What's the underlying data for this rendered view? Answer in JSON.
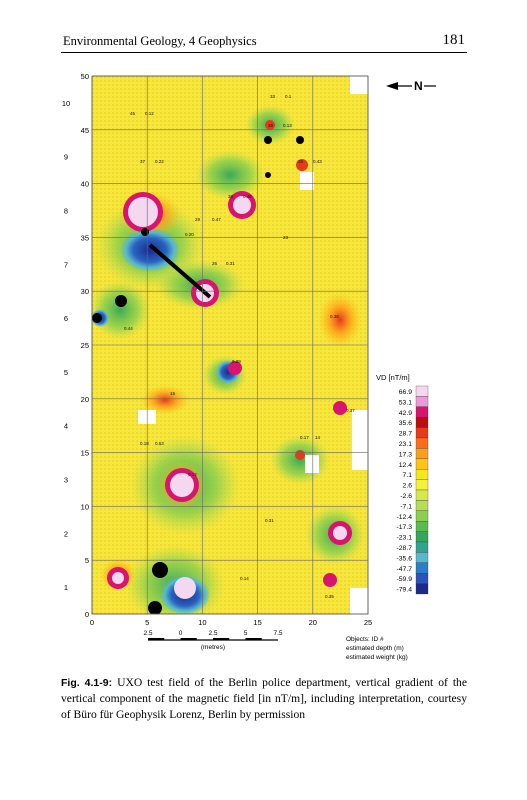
{
  "header": {
    "running_title": "Environmental Geology, 4 Geophysics",
    "page_number": "181"
  },
  "north_label": "N",
  "chart_data": {
    "type": "heatmap",
    "x_ticks": [
      0,
      5,
      10,
      15,
      20,
      25
    ],
    "y_ticks_m": [
      0,
      5,
      10,
      15,
      20,
      25,
      30,
      35,
      40,
      45,
      50
    ],
    "y_ticks_grid": [
      1,
      2,
      3,
      4,
      5,
      6,
      7,
      8,
      9,
      10
    ],
    "xlim": [
      0,
      25
    ],
    "ylim": [
      0,
      50
    ],
    "colorbar_title": "VD [nT/m]",
    "colorbar_values": [
      "66.9",
      "53.1",
      "42.9",
      "35.6",
      "28.7",
      "23.1",
      "17.3",
      "12.4",
      "7.1",
      "2.6",
      "-2.6",
      "-7.1",
      "-12.4",
      "-17.3",
      "-23.1",
      "-28.7",
      "-35.6",
      "-47.7",
      "-59.9",
      "-79.4"
    ],
    "colorbar_colors": [
      "#f4d8f0",
      "#ef9ad8",
      "#d8146e",
      "#b81010",
      "#e63a1a",
      "#ff6b1a",
      "#ff9e1a",
      "#ffc318",
      "#f5e81c",
      "#f5f03a",
      "#d8e84a",
      "#b6dc58",
      "#8ccf4e",
      "#5cbb4e",
      "#33a85c",
      "#2fa68c",
      "#57b8cf",
      "#2a7fc8",
      "#2b54b8",
      "#1c2a8c"
    ],
    "scale_labels": [
      "2.5",
      "0",
      "2.5",
      "5",
      "7.5"
    ],
    "scale_unit": "(metres)",
    "objects_legend": [
      "Objects: ID #",
      "estimated depth (m)",
      "estimated weight (kg)"
    ],
    "object_labels": [
      "33",
      "0.1",
      "45",
      "0.12",
      "38",
      "0.13",
      "37",
      "0.22",
      "35",
      "0.43",
      "38",
      "0.46",
      "29",
      "0.47",
      "26",
      "0.31",
      "23",
      "0.20",
      "0.38",
      "0.44",
      "0.29",
      "15",
      "0.17",
      "14",
      "0.18",
      "0.53",
      "0.12",
      "0.31",
      "0.14",
      "0.35",
      "0.37"
    ]
  },
  "caption": {
    "label": "Fig. 4.1-9:",
    "text": "UXO test field of the Berlin police department, vertical gradient of the vertical component of the magnetic field [in nT/m], including interpretation, courtesy of Büro für Geophysik Lorenz, Berlin by permission"
  }
}
